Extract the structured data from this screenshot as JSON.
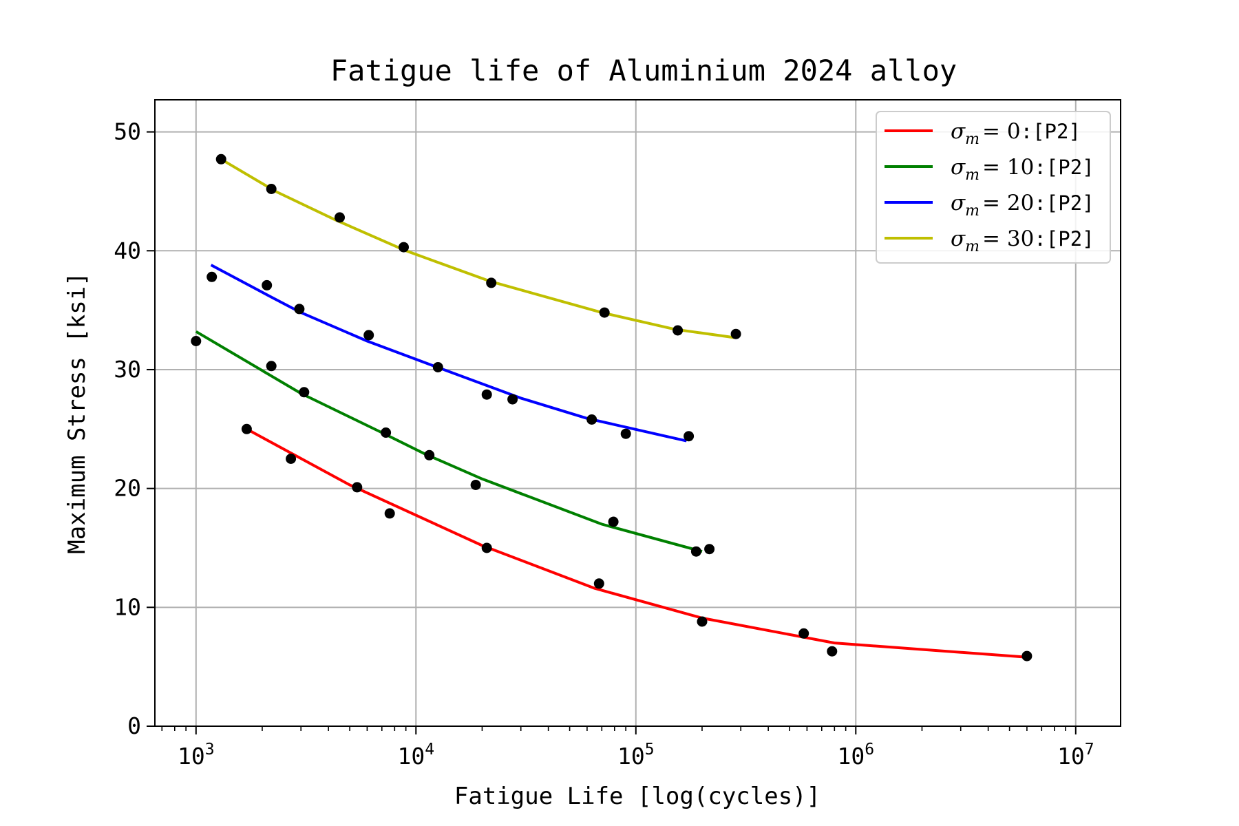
{
  "chart_data": {
    "type": "line",
    "title": "Fatigue life of Aluminium 2024 alloy",
    "xlabel": "Fatigue Life [log(cycles)]",
    "ylabel": "Maximum Stress [ksi]",
    "xscale": "log",
    "xlim": [
      650,
      16000000
    ],
    "ylim": [
      0,
      52.7
    ],
    "x_ticks": [
      1000,
      10000,
      100000,
      1000000,
      10000000
    ],
    "x_tick_labels": [
      {
        "base": "10",
        "exp": "3"
      },
      {
        "base": "10",
        "exp": "4"
      },
      {
        "base": "10",
        "exp": "5"
      },
      {
        "base": "10",
        "exp": "6"
      },
      {
        "base": "10",
        "exp": "7"
      }
    ],
    "y_ticks": [
      0,
      10,
      20,
      30,
      40,
      50
    ],
    "y_tick_labels": [
      "0",
      "10",
      "20",
      "30",
      "40",
      "50"
    ],
    "grid": true,
    "legend_position": "top-right",
    "marker_color": "#000000",
    "series": [
      {
        "name": "σm = 0:[P2]",
        "legend_var": "σ",
        "legend_sub": "m",
        "legend_eq": "= 0",
        "legend_tag": ":[P2]",
        "color": "#ff0000",
        "line": [
          [
            1700,
            25.0
          ],
          [
            5000,
            20.3
          ],
          [
            20000,
            15.2
          ],
          [
            65000,
            11.6
          ],
          [
            200000,
            9.1
          ],
          [
            800000,
            7.0
          ],
          [
            6000000,
            5.8
          ]
        ],
        "points": [
          [
            1700,
            25.0
          ],
          [
            2700,
            22.5
          ],
          [
            5400,
            20.1
          ],
          [
            7600,
            17.9
          ],
          [
            21000,
            15.0
          ],
          [
            68000,
            12.0
          ],
          [
            200000,
            8.8
          ],
          [
            580000,
            7.8
          ],
          [
            780000,
            6.3
          ],
          [
            6000000,
            5.9
          ]
        ]
      },
      {
        "name": "σm = 10:[P2]",
        "legend_var": "σ",
        "legend_sub": "m",
        "legend_eq": "= 10",
        "legend_tag": ":[P2]",
        "color": "#008000",
        "line": [
          [
            1000,
            33.2
          ],
          [
            3000,
            28.0
          ],
          [
            7000,
            24.7
          ],
          [
            11000,
            22.9
          ],
          [
            20000,
            20.8
          ],
          [
            70000,
            17.0
          ],
          [
            200000,
            14.7
          ]
        ],
        "points": [
          [
            1000,
            32.4
          ],
          [
            2200,
            30.3
          ],
          [
            3100,
            28.1
          ],
          [
            7300,
            24.7
          ],
          [
            11500,
            22.8
          ],
          [
            18700,
            20.3
          ],
          [
            79000,
            17.2
          ],
          [
            188000,
            14.7
          ],
          [
            216000,
            14.9
          ]
        ]
      },
      {
        "name": "σm = 20:[P2]",
        "legend_var": "σ",
        "legend_sub": "m",
        "legend_eq": "= 20",
        "legend_tag": ":[P2]",
        "color": "#0000ff",
        "line": [
          [
            1170,
            38.8
          ],
          [
            2200,
            36.1
          ],
          [
            3000,
            34.8
          ],
          [
            6000,
            32.4
          ],
          [
            12500,
            30.2
          ],
          [
            30000,
            27.6
          ],
          [
            60000,
            25.9
          ],
          [
            170000,
            24.0
          ]
        ],
        "points": [
          [
            1180,
            37.8
          ],
          [
            2100,
            37.1
          ],
          [
            2950,
            35.1
          ],
          [
            6100,
            32.9
          ],
          [
            12600,
            30.2
          ],
          [
            21000,
            27.9
          ],
          [
            27500,
            27.5
          ],
          [
            63000,
            25.8
          ],
          [
            90000,
            24.6
          ],
          [
            174000,
            24.4
          ]
        ]
      },
      {
        "name": "σm = 30:[P2]",
        "legend_var": "σ",
        "legend_sub": "m",
        "legend_eq": "= 30",
        "legend_tag": ":[P2]",
        "color": "#bfbf00",
        "line": [
          [
            1300,
            47.7
          ],
          [
            2300,
            45.0
          ],
          [
            4300,
            42.6
          ],
          [
            9000,
            40.0
          ],
          [
            22000,
            37.4
          ],
          [
            70000,
            34.8
          ],
          [
            150000,
            33.4
          ],
          [
            280000,
            32.7
          ]
        ],
        "points": [
          [
            1300,
            47.7
          ],
          [
            2200,
            45.2
          ],
          [
            4500,
            42.8
          ],
          [
            8800,
            40.3
          ],
          [
            22000,
            37.3
          ],
          [
            72000,
            34.8
          ],
          [
            155000,
            33.3
          ],
          [
            285000,
            33.0
          ]
        ]
      }
    ]
  }
}
